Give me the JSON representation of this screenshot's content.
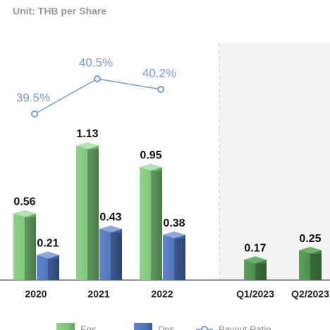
{
  "chart_data": {
    "type": "bar",
    "subtitle": "Unit: THB per Share",
    "categories": [
      "2020",
      "2021",
      "2022",
      "Q1/2023",
      "Q2/2023"
    ],
    "series": [
      {
        "name": "Eps",
        "color": "#7dc57b",
        "values": [
          0.56,
          1.13,
          0.95,
          0.17,
          0.25
        ]
      },
      {
        "name": "Dps",
        "color": "#4f73ba",
        "values": [
          0.21,
          0.43,
          0.38,
          null,
          null
        ]
      },
      {
        "name": "Payout Ratio",
        "color": "#7b9bd6",
        "type": "line",
        "values": [
          39.5,
          40.5,
          40.2,
          null,
          null
        ],
        "value_labels": [
          "39.5%",
          "40.5%",
          "40.2%",
          null,
          null
        ]
      }
    ]
  }
}
